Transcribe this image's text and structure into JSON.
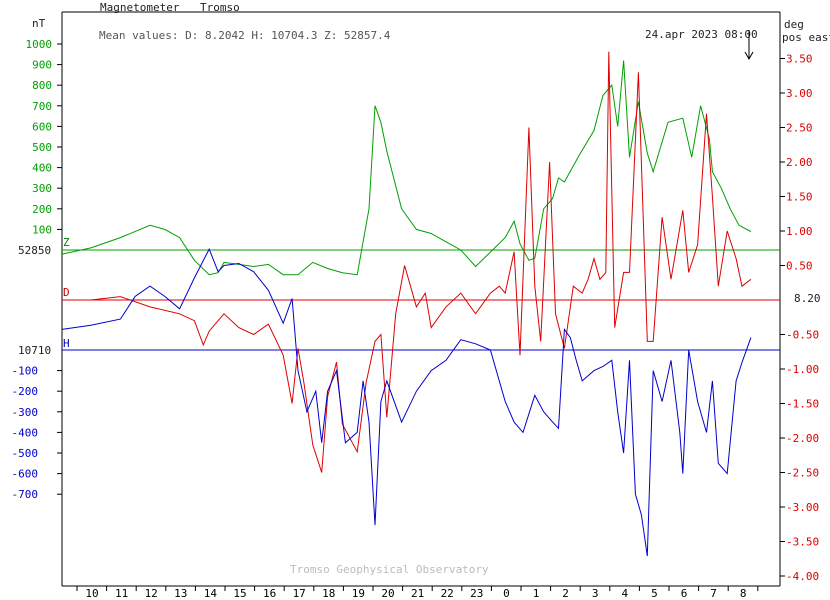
{
  "header": {
    "instrument": "Magnetometer",
    "station": "Tromso",
    "mean_values": "Mean values:  D: 8.2042   H: 10704.3   Z: 52857.4",
    "timestamp": "24.apr 2023 08:00"
  },
  "footer": {
    "watermark": "Tromso Geophysical Observatory"
  },
  "axes": {
    "left_unit": "nT",
    "right_unit_1": "deg",
    "right_unit_2": "pos east",
    "z_baseline_label": "52850",
    "h_baseline_label": "10710",
    "d_baseline_label": "8.20",
    "z_ticks": [
      "1000",
      "900",
      "800",
      "700",
      "600",
      "500",
      "400",
      "300",
      "200",
      "100"
    ],
    "h_ticks": [
      "-100",
      "-200",
      "-300",
      "-400",
      "-500",
      "-600",
      "-700"
    ],
    "d_ticks": [
      "3.50",
      "3.00",
      "2.50",
      "2.00",
      "1.50",
      "1.00",
      "0.50",
      "-0.50",
      "-1.00",
      "-1.50",
      "-2.00",
      "-2.50",
      "-3.00",
      "-3.50",
      "-4.00"
    ],
    "x_ticks": [
      "10",
      "11",
      "12",
      "13",
      "14",
      "15",
      "16",
      "17",
      "18",
      "19",
      "20",
      "21",
      "22",
      "23",
      "0",
      "1",
      "2",
      "3",
      "4",
      "5",
      "6",
      "7",
      "8"
    ]
  },
  "colors": {
    "Z": "#00a000",
    "D": "#dd0000",
    "H": "#0000cc",
    "axis": "#000000"
  },
  "chart_data": {
    "type": "line",
    "x_unit": "hour (UT), 23 Apr 2023 09:00 to 24 Apr 2023 08:30",
    "series": [
      {
        "name": "Z",
        "unit": "nT relative to 52850",
        "x": [
          9.0,
          10.0,
          11.0,
          12.0,
          12.5,
          13.0,
          13.5,
          14.0,
          14.3,
          14.5,
          15.0,
          15.5,
          16.0,
          16.5,
          17.0,
          17.5,
          18.0,
          18.5,
          19.0,
          19.4,
          19.6,
          19.8,
          20.0,
          20.5,
          21.0,
          21.5,
          22.0,
          22.5,
          23.0,
          23.5,
          24.0,
          24.3,
          24.5,
          24.8,
          25.0,
          25.3,
          25.6,
          25.8,
          26.0,
          26.5,
          27.0,
          27.3,
          27.6,
          27.8,
          28.0,
          28.2,
          28.5,
          28.8,
          29.0,
          29.5,
          30.0,
          30.3,
          30.6,
          30.9,
          31.0,
          31.3,
          31.6,
          31.9,
          32.3
        ],
        "y": [
          -20,
          10,
          60,
          120,
          100,
          60,
          -50,
          -120,
          -110,
          -60,
          -70,
          -80,
          -70,
          -120,
          -120,
          -60,
          -90,
          -110,
          -120,
          200,
          700,
          620,
          480,
          200,
          100,
          80,
          40,
          0,
          -80,
          -10,
          60,
          140,
          30,
          -50,
          -40,
          200,
          250,
          350,
          330,
          460,
          580,
          750,
          800,
          600,
          920,
          450,
          720,
          470,
          380,
          620,
          640,
          450,
          700,
          540,
          380,
          300,
          200,
          120,
          90
        ]
      },
      {
        "name": "D",
        "unit": "deg relative to 8.20",
        "x": [
          9.0,
          10.0,
          11.0,
          12.0,
          13.0,
          13.5,
          13.8,
          14.0,
          14.3,
          14.5,
          15.0,
          15.5,
          16.0,
          16.5,
          16.8,
          17.0,
          17.2,
          17.5,
          17.8,
          18.0,
          18.3,
          18.5,
          19.0,
          19.3,
          19.6,
          19.8,
          20.0,
          20.3,
          20.6,
          21.0,
          21.3,
          21.5,
          22.0,
          22.5,
          23.0,
          23.5,
          23.8,
          24.0,
          24.3,
          24.5,
          24.8,
          25.0,
          25.2,
          25.5,
          25.7,
          26.0,
          26.3,
          26.6,
          26.8,
          27.0,
          27.2,
          27.4,
          27.5,
          27.7,
          28.0,
          28.2,
          28.5,
          28.8,
          29.0,
          29.3,
          29.6,
          30.0,
          30.2,
          30.5,
          30.8,
          31.0,
          31.2,
          31.5,
          31.8,
          32.0,
          32.3
        ],
        "y": [
          0.0,
          0.0,
          0.05,
          -0.1,
          -0.2,
          -0.3,
          -0.65,
          -0.45,
          -0.3,
          -0.2,
          -0.4,
          -0.5,
          -0.35,
          -0.8,
          -1.5,
          -0.7,
          -1.2,
          -2.1,
          -2.5,
          -1.4,
          -0.9,
          -1.8,
          -2.2,
          -1.2,
          -0.6,
          -0.5,
          -1.7,
          -0.2,
          0.5,
          -0.1,
          0.1,
          -0.4,
          -0.1,
          0.1,
          -0.2,
          0.1,
          0.2,
          0.1,
          0.7,
          -0.8,
          2.5,
          0.2,
          -0.6,
          2.0,
          -0.2,
          -0.7,
          0.2,
          0.1,
          0.3,
          0.6,
          0.3,
          0.4,
          3.6,
          -0.4,
          0.4,
          0.4,
          3.3,
          -0.6,
          -0.6,
          1.2,
          0.3,
          1.3,
          0.4,
          0.8,
          2.7,
          1.5,
          0.2,
          1.0,
          0.6,
          0.2,
          0.3
        ]
      },
      {
        "name": "H",
        "unit": "nT relative to 10710",
        "x": [
          9.0,
          10.0,
          11.0,
          11.5,
          12.0,
          12.5,
          13.0,
          13.5,
          14.0,
          14.3,
          14.5,
          15.0,
          15.5,
          16.0,
          16.5,
          16.8,
          17.0,
          17.3,
          17.6,
          17.8,
          18.0,
          18.3,
          18.6,
          19.0,
          19.2,
          19.4,
          19.6,
          19.8,
          20.0,
          20.5,
          21.0,
          21.5,
          22.0,
          22.5,
          23.0,
          23.5,
          24.0,
          24.3,
          24.6,
          25.0,
          25.3,
          25.6,
          25.8,
          26.0,
          26.2,
          26.4,
          26.6,
          27.0,
          27.3,
          27.6,
          27.8,
          28.0,
          28.2,
          28.4,
          28.6,
          28.8,
          29.0,
          29.3,
          29.6,
          29.9,
          30.0,
          30.2,
          30.5,
          30.8,
          31.0,
          31.2,
          31.5,
          31.8,
          32.0,
          32.3
        ],
        "y": [
          100,
          120,
          150,
          260,
          310,
          260,
          200,
          350,
          490,
          380,
          410,
          420,
          380,
          290,
          130,
          250,
          -100,
          -300,
          -200,
          -450,
          -200,
          -100,
          -450,
          -400,
          -150,
          -350,
          -850,
          -250,
          -150,
          -350,
          -200,
          -100,
          -50,
          50,
          30,
          0,
          -250,
          -350,
          -400,
          -220,
          -300,
          -350,
          -380,
          100,
          60,
          -50,
          -150,
          -100,
          -80,
          -50,
          -300,
          -500,
          -50,
          -700,
          -800,
          -1000,
          -100,
          -250,
          -50,
          -400,
          -600,
          0,
          -250,
          -400,
          -150,
          -550,
          -600,
          -150,
          -60,
          60
        ]
      }
    ],
    "xlim": [
      9.0,
      32.5
    ],
    "z_axis_range_nT": [
      -700,
      1000
    ],
    "d_axis_range_deg": [
      -4.0,
      3.5
    ],
    "grid": false,
    "legend": "none (series labelled Z, D, H at baselines)"
  }
}
